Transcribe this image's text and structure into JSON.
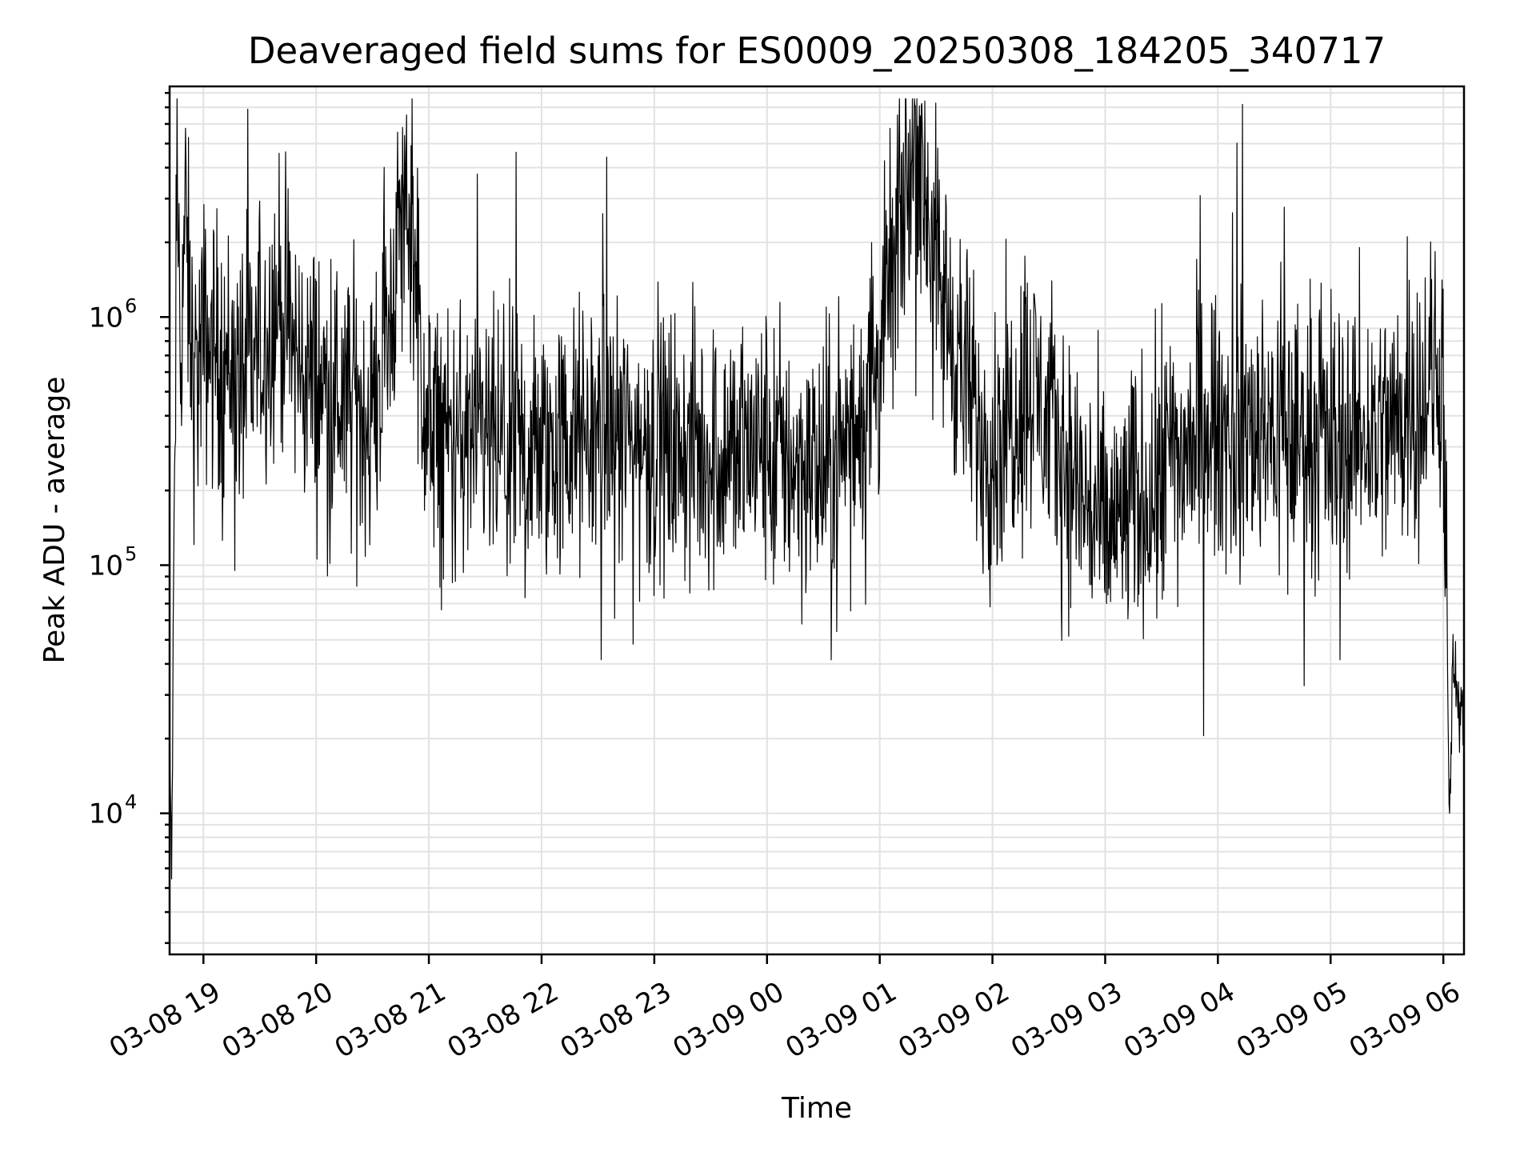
{
  "chart_data": {
    "type": "line",
    "title": "Deaveraged field sums for ES0009_20250308_184205_340717",
    "xlabel": "Time",
    "ylabel": "Peak ADU - average",
    "yscale": "log",
    "xlim": [
      "2025-03-08 18:42",
      "2025-03-09 06:11"
    ],
    "ylim": [
      2700,
      8500000
    ],
    "grid": true,
    "x_ticks": [
      {
        "value": "2025-03-08 19:00",
        "label": "03-08 19"
      },
      {
        "value": "2025-03-08 20:00",
        "label": "03-08 20"
      },
      {
        "value": "2025-03-08 21:00",
        "label": "03-08 21"
      },
      {
        "value": "2025-03-08 22:00",
        "label": "03-08 22"
      },
      {
        "value": "2025-03-08 23:00",
        "label": "03-08 23"
      },
      {
        "value": "2025-03-09 00:00",
        "label": "03-09 00"
      },
      {
        "value": "2025-03-09 01:00",
        "label": "03-09 01"
      },
      {
        "value": "2025-03-09 02:00",
        "label": "03-09 02"
      },
      {
        "value": "2025-03-09 03:00",
        "label": "03-09 03"
      },
      {
        "value": "2025-03-09 04:00",
        "label": "03-09 04"
      },
      {
        "value": "2025-03-09 05:00",
        "label": "03-09 05"
      },
      {
        "value": "2025-03-09 06:00",
        "label": "03-09 06"
      }
    ],
    "y_ticks": [
      {
        "value": 10000,
        "base": "10",
        "exp": "4"
      },
      {
        "value": 100000,
        "base": "10",
        "exp": "5"
      },
      {
        "value": 1000000,
        "base": "10",
        "exp": "6"
      }
    ],
    "series": [
      {
        "color": "#000000",
        "points": [
          [
            "2025-03-08 18:42",
            30000
          ],
          [
            "2025-03-08 18:43",
            4000
          ],
          [
            "2025-03-08 18:44",
            60000
          ],
          [
            "2025-03-08 18:45",
            400000
          ],
          [
            "2025-03-08 18:46",
            3500000
          ],
          [
            "2025-03-08 18:48",
            700000
          ],
          [
            "2025-03-08 18:50",
            2500000
          ],
          [
            "2025-03-08 18:55",
            500000
          ],
          [
            "2025-03-08 19:00",
            800000
          ],
          [
            "2025-03-08 19:10",
            700000
          ],
          [
            "2025-03-08 19:20",
            550000
          ],
          [
            "2025-03-08 19:30",
            700000
          ],
          [
            "2025-03-08 19:40",
            1200000
          ],
          [
            "2025-03-08 19:50",
            650000
          ],
          [
            "2025-03-08 20:00",
            550000
          ],
          [
            "2025-03-08 20:15",
            450000
          ],
          [
            "2025-03-08 20:30",
            400000
          ],
          [
            "2025-03-08 20:48",
            3100000
          ],
          [
            "2025-03-08 21:00",
            330000
          ],
          [
            "2025-03-08 21:30",
            300000
          ],
          [
            "2025-03-08 22:00",
            280000
          ],
          [
            "2025-03-08 22:30",
            350000
          ],
          [
            "2025-03-08 23:00",
            300000
          ],
          [
            "2025-03-08 23:30",
            280000
          ],
          [
            "2025-03-09 00:00",
            300000
          ],
          [
            "2025-03-09 00:30",
            230000
          ],
          [
            "2025-03-09 00:50",
            400000
          ],
          [
            "2025-03-09 01:00",
            700000
          ],
          [
            "2025-03-09 01:20",
            6000000
          ],
          [
            "2025-03-09 01:30",
            1500000
          ],
          [
            "2025-03-09 01:50",
            400000
          ],
          [
            "2025-03-09 02:00",
            300000
          ],
          [
            "2025-03-09 02:20",
            550000
          ],
          [
            "2025-03-09 02:40",
            250000
          ],
          [
            "2025-03-09 03:00",
            130000
          ],
          [
            "2025-03-09 03:20",
            200000
          ],
          [
            "2025-03-09 03:40",
            280000
          ],
          [
            "2025-03-09 04:00",
            350000
          ],
          [
            "2025-03-09 04:30",
            350000
          ],
          [
            "2025-03-09 05:00",
            330000
          ],
          [
            "2025-03-09 05:30",
            350000
          ],
          [
            "2025-03-09 05:50",
            500000
          ],
          [
            "2025-03-09 06:00",
            600000
          ],
          [
            "2025-03-09 06:03",
            10000
          ],
          [
            "2025-03-09 06:05",
            40000
          ],
          [
            "2025-03-09 06:11",
            20000
          ]
        ]
      }
    ]
  }
}
